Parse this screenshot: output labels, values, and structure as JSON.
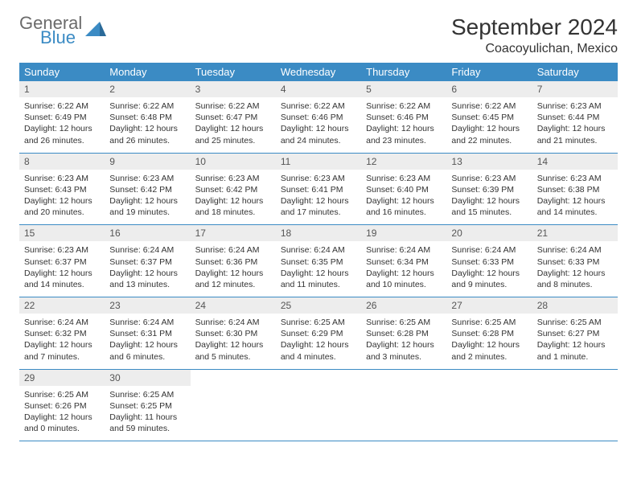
{
  "brand": {
    "general": "General",
    "blue": "Blue"
  },
  "header": {
    "month_title": "September 2024",
    "location": "Coacoyulichan, Mexico"
  },
  "colors": {
    "header_bg": "#3b8bc4",
    "header_text": "#ffffff",
    "daynum_bg": "#ededed",
    "daynum_text": "#555555",
    "body_text": "#333333",
    "brand_gray": "#6b6b6b",
    "brand_blue": "#3b8bc4",
    "row_border": "#3b8bc4"
  },
  "day_names": [
    "Sunday",
    "Monday",
    "Tuesday",
    "Wednesday",
    "Thursday",
    "Friday",
    "Saturday"
  ],
  "weeks": [
    [
      {
        "num": "1",
        "sunrise": "Sunrise: 6:22 AM",
        "sunset": "Sunset: 6:49 PM",
        "daylight1": "Daylight: 12 hours",
        "daylight2": "and 26 minutes."
      },
      {
        "num": "2",
        "sunrise": "Sunrise: 6:22 AM",
        "sunset": "Sunset: 6:48 PM",
        "daylight1": "Daylight: 12 hours",
        "daylight2": "and 26 minutes."
      },
      {
        "num": "3",
        "sunrise": "Sunrise: 6:22 AM",
        "sunset": "Sunset: 6:47 PM",
        "daylight1": "Daylight: 12 hours",
        "daylight2": "and 25 minutes."
      },
      {
        "num": "4",
        "sunrise": "Sunrise: 6:22 AM",
        "sunset": "Sunset: 6:46 PM",
        "daylight1": "Daylight: 12 hours",
        "daylight2": "and 24 minutes."
      },
      {
        "num": "5",
        "sunrise": "Sunrise: 6:22 AM",
        "sunset": "Sunset: 6:46 PM",
        "daylight1": "Daylight: 12 hours",
        "daylight2": "and 23 minutes."
      },
      {
        "num": "6",
        "sunrise": "Sunrise: 6:22 AM",
        "sunset": "Sunset: 6:45 PM",
        "daylight1": "Daylight: 12 hours",
        "daylight2": "and 22 minutes."
      },
      {
        "num": "7",
        "sunrise": "Sunrise: 6:23 AM",
        "sunset": "Sunset: 6:44 PM",
        "daylight1": "Daylight: 12 hours",
        "daylight2": "and 21 minutes."
      }
    ],
    [
      {
        "num": "8",
        "sunrise": "Sunrise: 6:23 AM",
        "sunset": "Sunset: 6:43 PM",
        "daylight1": "Daylight: 12 hours",
        "daylight2": "and 20 minutes."
      },
      {
        "num": "9",
        "sunrise": "Sunrise: 6:23 AM",
        "sunset": "Sunset: 6:42 PM",
        "daylight1": "Daylight: 12 hours",
        "daylight2": "and 19 minutes."
      },
      {
        "num": "10",
        "sunrise": "Sunrise: 6:23 AM",
        "sunset": "Sunset: 6:42 PM",
        "daylight1": "Daylight: 12 hours",
        "daylight2": "and 18 minutes."
      },
      {
        "num": "11",
        "sunrise": "Sunrise: 6:23 AM",
        "sunset": "Sunset: 6:41 PM",
        "daylight1": "Daylight: 12 hours",
        "daylight2": "and 17 minutes."
      },
      {
        "num": "12",
        "sunrise": "Sunrise: 6:23 AM",
        "sunset": "Sunset: 6:40 PM",
        "daylight1": "Daylight: 12 hours",
        "daylight2": "and 16 minutes."
      },
      {
        "num": "13",
        "sunrise": "Sunrise: 6:23 AM",
        "sunset": "Sunset: 6:39 PM",
        "daylight1": "Daylight: 12 hours",
        "daylight2": "and 15 minutes."
      },
      {
        "num": "14",
        "sunrise": "Sunrise: 6:23 AM",
        "sunset": "Sunset: 6:38 PM",
        "daylight1": "Daylight: 12 hours",
        "daylight2": "and 14 minutes."
      }
    ],
    [
      {
        "num": "15",
        "sunrise": "Sunrise: 6:23 AM",
        "sunset": "Sunset: 6:37 PM",
        "daylight1": "Daylight: 12 hours",
        "daylight2": "and 14 minutes."
      },
      {
        "num": "16",
        "sunrise": "Sunrise: 6:24 AM",
        "sunset": "Sunset: 6:37 PM",
        "daylight1": "Daylight: 12 hours",
        "daylight2": "and 13 minutes."
      },
      {
        "num": "17",
        "sunrise": "Sunrise: 6:24 AM",
        "sunset": "Sunset: 6:36 PM",
        "daylight1": "Daylight: 12 hours",
        "daylight2": "and 12 minutes."
      },
      {
        "num": "18",
        "sunrise": "Sunrise: 6:24 AM",
        "sunset": "Sunset: 6:35 PM",
        "daylight1": "Daylight: 12 hours",
        "daylight2": "and 11 minutes."
      },
      {
        "num": "19",
        "sunrise": "Sunrise: 6:24 AM",
        "sunset": "Sunset: 6:34 PM",
        "daylight1": "Daylight: 12 hours",
        "daylight2": "and 10 minutes."
      },
      {
        "num": "20",
        "sunrise": "Sunrise: 6:24 AM",
        "sunset": "Sunset: 6:33 PM",
        "daylight1": "Daylight: 12 hours",
        "daylight2": "and 9 minutes."
      },
      {
        "num": "21",
        "sunrise": "Sunrise: 6:24 AM",
        "sunset": "Sunset: 6:33 PM",
        "daylight1": "Daylight: 12 hours",
        "daylight2": "and 8 minutes."
      }
    ],
    [
      {
        "num": "22",
        "sunrise": "Sunrise: 6:24 AM",
        "sunset": "Sunset: 6:32 PM",
        "daylight1": "Daylight: 12 hours",
        "daylight2": "and 7 minutes."
      },
      {
        "num": "23",
        "sunrise": "Sunrise: 6:24 AM",
        "sunset": "Sunset: 6:31 PM",
        "daylight1": "Daylight: 12 hours",
        "daylight2": "and 6 minutes."
      },
      {
        "num": "24",
        "sunrise": "Sunrise: 6:24 AM",
        "sunset": "Sunset: 6:30 PM",
        "daylight1": "Daylight: 12 hours",
        "daylight2": "and 5 minutes."
      },
      {
        "num": "25",
        "sunrise": "Sunrise: 6:25 AM",
        "sunset": "Sunset: 6:29 PM",
        "daylight1": "Daylight: 12 hours",
        "daylight2": "and 4 minutes."
      },
      {
        "num": "26",
        "sunrise": "Sunrise: 6:25 AM",
        "sunset": "Sunset: 6:28 PM",
        "daylight1": "Daylight: 12 hours",
        "daylight2": "and 3 minutes."
      },
      {
        "num": "27",
        "sunrise": "Sunrise: 6:25 AM",
        "sunset": "Sunset: 6:28 PM",
        "daylight1": "Daylight: 12 hours",
        "daylight2": "and 2 minutes."
      },
      {
        "num": "28",
        "sunrise": "Sunrise: 6:25 AM",
        "sunset": "Sunset: 6:27 PM",
        "daylight1": "Daylight: 12 hours",
        "daylight2": "and 1 minute."
      }
    ],
    [
      {
        "num": "29",
        "sunrise": "Sunrise: 6:25 AM",
        "sunset": "Sunset: 6:26 PM",
        "daylight1": "Daylight: 12 hours",
        "daylight2": "and 0 minutes."
      },
      {
        "num": "30",
        "sunrise": "Sunrise: 6:25 AM",
        "sunset": "Sunset: 6:25 PM",
        "daylight1": "Daylight: 11 hours",
        "daylight2": "and 59 minutes."
      },
      null,
      null,
      null,
      null,
      null
    ]
  ]
}
